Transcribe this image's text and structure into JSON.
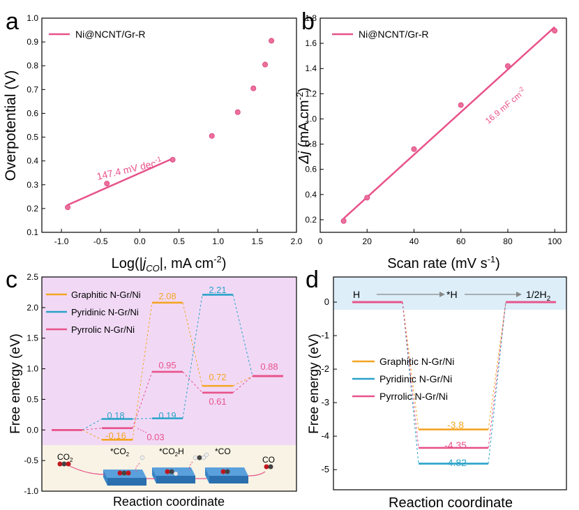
{
  "panels": {
    "a": "a",
    "b": "b",
    "c": "c",
    "d": "d"
  },
  "colors": {
    "pink": "#e8528a",
    "pink_marker": "#ec6f9c",
    "orange": "#f4a523",
    "blue": "#2aa2c8",
    "purple_bg": "#f1d9f6",
    "beige_bg": "#f8f3e4",
    "lightblue_bg": "#ddeef8",
    "slab": "#3b86c8",
    "arrow_gray": "#888888"
  },
  "chart_data": [
    {
      "panel": "a",
      "type": "scatter",
      "xlabel_prefix": "Log(|",
      "xlabel_var": "j",
      "xlabel_sub": "CO",
      "xlabel_suffix": "|, mA cm",
      "xlabel_sup": "-2",
      "xlabel_close": ")",
      "ylabel": "Overpotential (V)",
      "xlim": [
        -1.25,
        2.0
      ],
      "ylim": [
        0.1,
        1.0
      ],
      "xticks": [
        "-1.0",
        "-0.5",
        "0.0",
        "0.5",
        "1.0",
        "1.5",
        "2.0"
      ],
      "yticks": [
        "0.1",
        "0.2",
        "0.3",
        "0.4",
        "0.5",
        "0.6",
        "0.7",
        "0.8",
        "0.9",
        "1.0"
      ],
      "series": [
        {
          "name": "Ni@NCNT/Gr-R",
          "x": [
            -0.92,
            -0.42,
            0.42,
            0.92,
            1.25,
            1.45,
            1.6,
            1.68
          ],
          "y": [
            0.205,
            0.305,
            0.405,
            0.505,
            0.605,
            0.705,
            0.805,
            0.905
          ]
        }
      ],
      "fit": {
        "x": [
          -0.92,
          0.42
        ],
        "y": [
          0.215,
          0.41
        ]
      },
      "annotation": {
        "text_main": "147.4 mV dec",
        "text_sup": "-1"
      }
    },
    {
      "panel": "b",
      "type": "scatter",
      "xlabel_main": "Scan rate (mV s",
      "xlabel_sup": "-1",
      "xlabel_close": ")",
      "ylabel_var": "Δj",
      "ylabel_main": " (mA cm",
      "ylabel_sup": "-2",
      "ylabel_close": ")",
      "xlim": [
        0,
        105
      ],
      "ylim": [
        0.1,
        1.8
      ],
      "xticks": [
        "0",
        "20",
        "40",
        "60",
        "80",
        "100"
      ],
      "yticks": [
        "0.2",
        "0.4",
        "0.6",
        "0.8",
        "1.0",
        "1.2",
        "1.4",
        "1.6",
        "1.8"
      ],
      "series": [
        {
          "name": "Ni@NCNT/Gr-R",
          "x": [
            10,
            20,
            40,
            60,
            80,
            100
          ],
          "y": [
            0.19,
            0.375,
            0.76,
            1.11,
            1.42,
            1.7
          ]
        }
      ],
      "fit": {
        "x": [
          10,
          100
        ],
        "y": [
          0.21,
          1.73
        ]
      },
      "annotation": {
        "text_main": "16.9 mF cm",
        "text_sup": "-2"
      }
    },
    {
      "panel": "c",
      "type": "line",
      "ylabel": "Free energy (eV)",
      "xlabel": "Reaction coordinate",
      "ylim": [
        -1.0,
        2.5
      ],
      "yticks": [
        "-1.0",
        "-0.5",
        "0.0",
        "0.5",
        "1.0",
        "1.5",
        "2.0",
        "2.5"
      ],
      "series": [
        {
          "name": "Graphitic N-Gr/Ni",
          "color": "#f4a523",
          "values": [
            0.0,
            -0.16,
            2.08,
            0.72,
            0.88
          ]
        },
        {
          "name": "Pyridinic N-Gr/Ni",
          "color": "#2aa2c8",
          "values": [
            0.0,
            0.18,
            0.19,
            2.21,
            0.88
          ]
        },
        {
          "name": "Pyrrolic N-Gr/Ni",
          "color": "#e8528a",
          "values": [
            0.0,
            0.03,
            0.95,
            0.61,
            0.88
          ]
        }
      ],
      "value_labels": {
        "orange_1": "-0.16",
        "orange_2": "2.08",
        "orange_3": "0.72",
        "blue_1": "0.18",
        "blue_2": "0.19",
        "blue_3": "2.21",
        "pink_1": "0.03",
        "pink_2": "0.95",
        "pink_3": "0.61",
        "final": "0.88"
      },
      "step_labels": {
        "co2_main": "CO",
        "co2_sub": "2",
        "star_co2_main": "*CO",
        "star_co2_sub": "2",
        "star_co2h_main": "*CO",
        "star_co2h_sub": "2",
        "star_co2h_tail": "H",
        "star_co": "*CO",
        "co": "CO"
      }
    },
    {
      "panel": "d",
      "type": "line",
      "ylabel": "Free energy (eV)",
      "xlabel": "Reaction coordinate",
      "ylim": [
        -5.6,
        0.75
      ],
      "yticks": [
        "0",
        "-1",
        "-2",
        "-3",
        "-4",
        "-5"
      ],
      "steps": {
        "h": "H",
        "star_h": "*H",
        "half_h2_main": "1/2H",
        "half_h2_sub": "2"
      },
      "series": [
        {
          "name": "Graphitic N-Gr/Ni",
          "color": "#f4a523",
          "values": [
            0,
            -3.8,
            0
          ]
        },
        {
          "name": "Pyridinic N-Gr/Ni",
          "color": "#2aa2c8",
          "values": [
            0,
            -4.82,
            0
          ]
        },
        {
          "name": "Pyrrolic N-Gr/Ni",
          "color": "#e8528a",
          "values": [
            0,
            -4.35,
            0
          ]
        }
      ],
      "value_labels": {
        "orange": "-3.8",
        "pink": "-4.35",
        "blue": "-4.82"
      }
    }
  ]
}
